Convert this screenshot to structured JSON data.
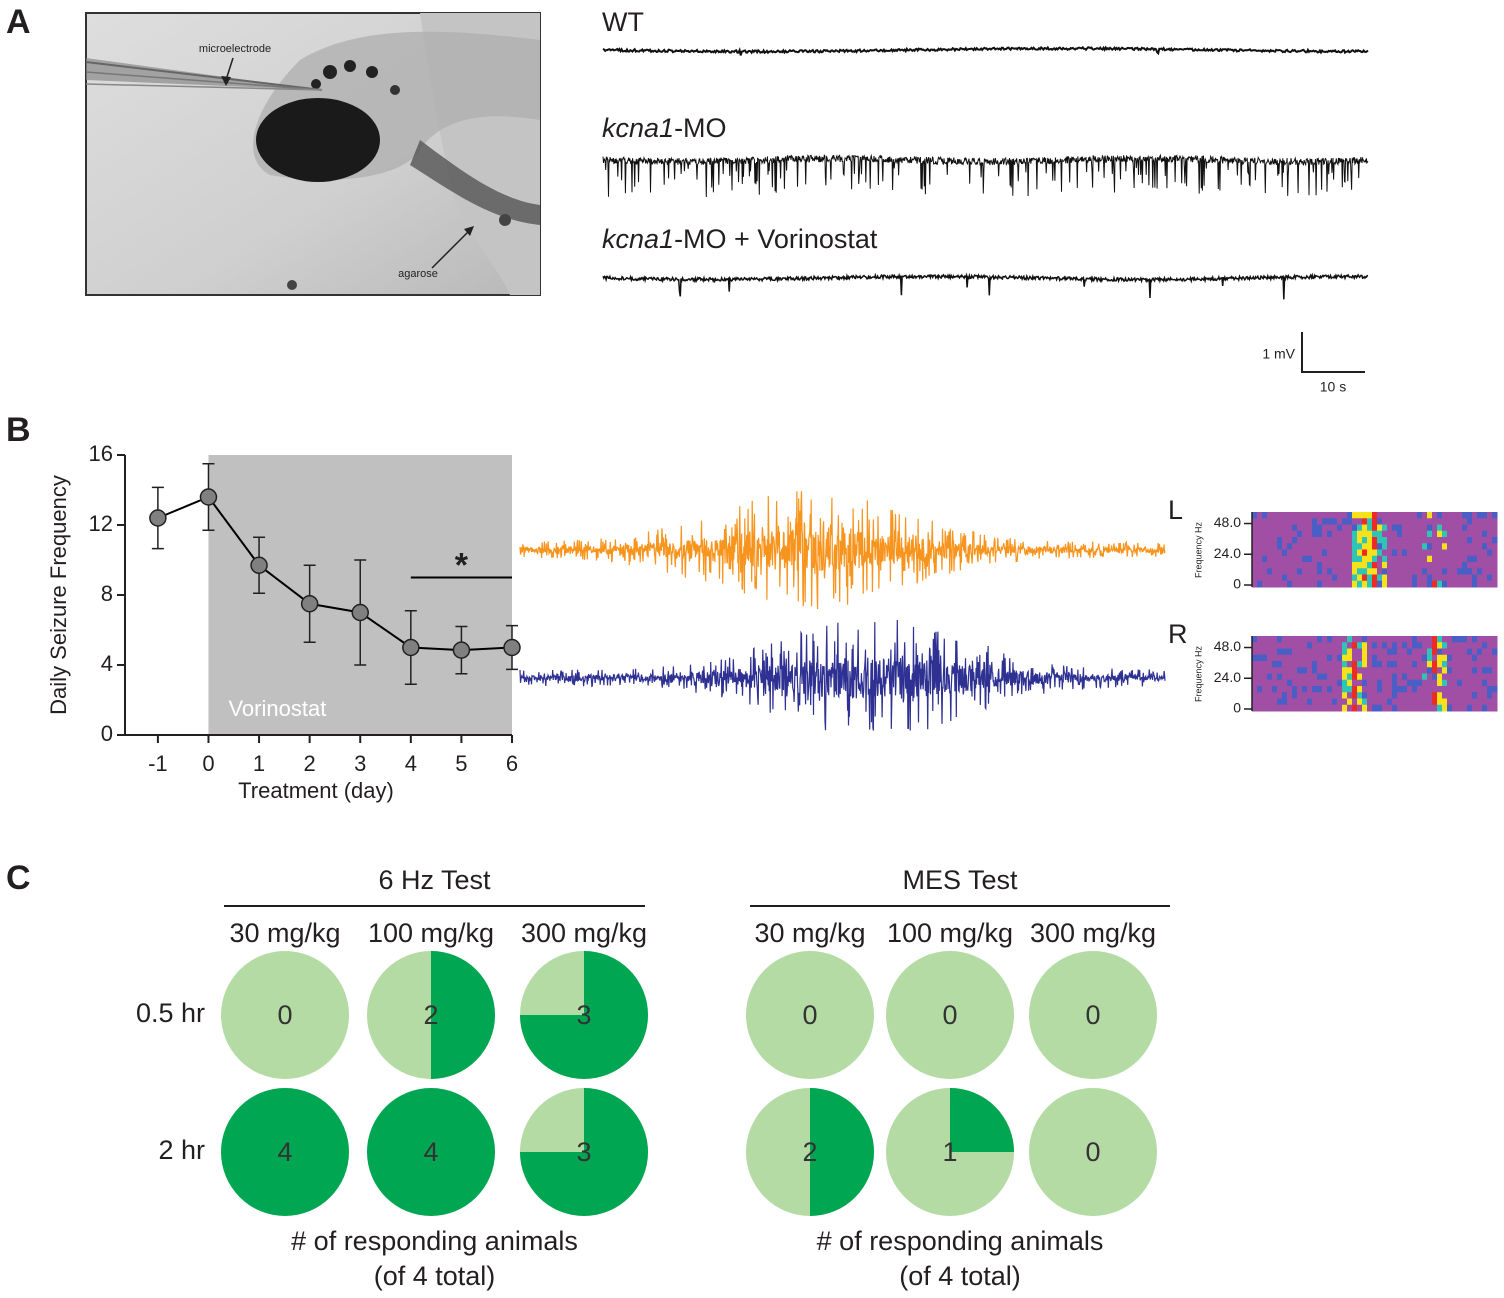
{
  "panels": [
    "A",
    "B",
    "C"
  ],
  "photo": {
    "labels": [
      "microelectrode",
      "agarose"
    ]
  },
  "traces": [
    {
      "label": "WT"
    },
    {
      "gene": "kcna1",
      "label": "-MO"
    },
    {
      "gene": "kcna1",
      "label": "-MO + Vorinostat"
    }
  ],
  "scale_bar": {
    "vertical": "1 mV",
    "horizontal": "10 s"
  },
  "spectrogram": {
    "labels": [
      "L",
      "R"
    ],
    "ylabel": "Frequency Hz",
    "ylim": [
      0,
      57
    ],
    "yticks": [
      {
        "value": 48,
        "label": "48.0"
      },
      {
        "value": 24,
        "label": "24.0"
      },
      0
    ]
  },
  "chart_data": [
    {
      "type": "line",
      "xlabel": "Treatment (day)",
      "ylabel": "Daily Seizure Frequency",
      "x": [
        -1,
        0,
        1,
        2,
        3,
        4,
        5,
        6
      ],
      "values": [
        12.4,
        13.6,
        9.7,
        7.5,
        7.0,
        5.0,
        4.85,
        5.0
      ],
      "errors": [
        1.75,
        1.9,
        1.6,
        2.2,
        3.0,
        2.1,
        1.35,
        1.25
      ],
      "xlim": [
        -1.65,
        6
      ],
      "ylim": [
        0,
        16
      ],
      "xticks": [
        -1,
        0,
        1,
        2,
        3,
        4,
        5,
        6
      ],
      "yticks": [
        0,
        4,
        8,
        12,
        16
      ],
      "color": "#808080",
      "line_color": "#000000",
      "shade": {
        "x": [
          0,
          6
        ],
        "label": "Vorinostat",
        "color": "#c0c0c0"
      },
      "significance": {
        "x": [
          4,
          6
        ],
        "y": 9,
        "label": "*"
      }
    },
    {
      "type": "pie-grid",
      "rows": [
        "0.5 hr",
        "2 hr"
      ],
      "total": 4,
      "colors": [
        "#b3dba3",
        "#00a651"
      ],
      "footnote": [
        "# of responding animals",
        "(of 4 total)"
      ],
      "groups": [
        {
          "title": "6 Hz Test",
          "doses": [
            "30 mg/kg",
            "100 mg/kg",
            "300 mg/kg"
          ],
          "values": [
            [
              0,
              2,
              3
            ],
            [
              4,
              4,
              3
            ]
          ]
        },
        {
          "title": "MES Test",
          "doses": [
            "30 mg/kg",
            "100 mg/kg",
            "300 mg/kg"
          ],
          "values": [
            [
              0,
              0,
              0
            ],
            [
              2,
              1,
              0
            ]
          ]
        }
      ]
    }
  ]
}
